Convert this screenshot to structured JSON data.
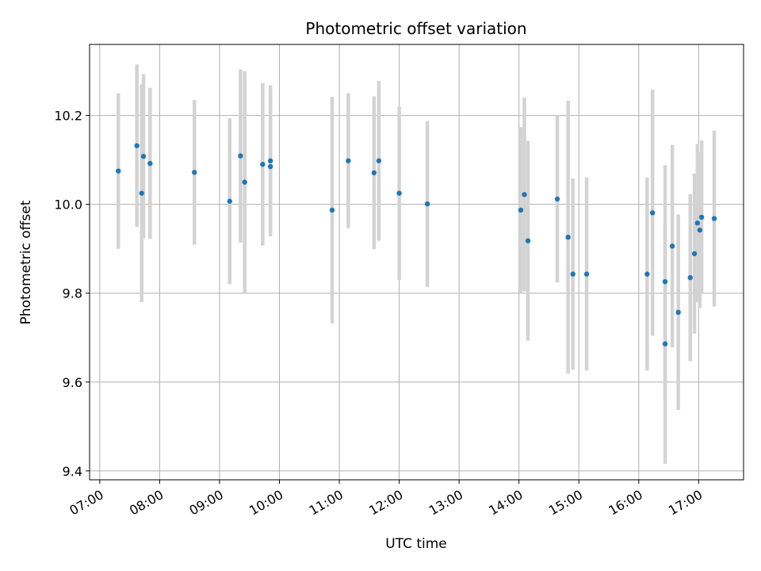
{
  "chart_data": {
    "type": "scatter",
    "title": "Photometric offset variation",
    "xlabel": "UTC time",
    "ylabel": "Photometric offset",
    "x_unit": "hours UTC",
    "xlim": [
      6.83,
      17.75
    ],
    "ylim": [
      9.38,
      10.36
    ],
    "x_ticks": [
      7,
      8,
      9,
      10,
      11,
      12,
      13,
      14,
      15,
      16,
      17
    ],
    "x_tick_labels": [
      "07:00",
      "08:00",
      "09:00",
      "10:00",
      "11:00",
      "12:00",
      "13:00",
      "14:00",
      "15:00",
      "16:00",
      "17:00"
    ],
    "y_ticks": [
      9.4,
      9.6,
      9.8,
      10.0,
      10.2
    ],
    "y_tick_labels": [
      "9.4",
      "9.6",
      "9.8",
      "10.0",
      "10.2"
    ],
    "grid": true,
    "point_color": "#1f77b4",
    "errorbar_color": "#d3d3d3",
    "points": [
      {
        "x": 7.31,
        "y": 10.075,
        "err": 0.175
      },
      {
        "x": 7.62,
        "y": 10.132,
        "err": 0.183
      },
      {
        "x": 7.7,
        "y": 10.025,
        "err": 0.245
      },
      {
        "x": 7.73,
        "y": 10.108,
        "err": 0.185
      },
      {
        "x": 7.84,
        "y": 10.092,
        "err": 0.17
      },
      {
        "x": 8.58,
        "y": 10.072,
        "err": 0.163
      },
      {
        "x": 9.17,
        "y": 10.007,
        "err": 0.187
      },
      {
        "x": 9.35,
        "y": 10.109,
        "err": 0.195
      },
      {
        "x": 9.42,
        "y": 10.05,
        "err": 0.25
      },
      {
        "x": 9.72,
        "y": 10.09,
        "err": 0.183
      },
      {
        "x": 9.85,
        "y": 10.098,
        "err": 0.17
      },
      {
        "x": 9.85,
        "y": 10.085,
        "err": 0.15
      },
      {
        "x": 10.88,
        "y": 9.987,
        "err": 0.255
      },
      {
        "x": 11.15,
        "y": 10.098,
        "err": 0.152
      },
      {
        "x": 11.58,
        "y": 10.071,
        "err": 0.172
      },
      {
        "x": 11.66,
        "y": 10.098,
        "err": 0.18
      },
      {
        "x": 12.0,
        "y": 10.025,
        "err": 0.195
      },
      {
        "x": 12.47,
        "y": 10.001,
        "err": 0.187
      },
      {
        "x": 14.03,
        "y": 9.987,
        "err": 0.187
      },
      {
        "x": 14.09,
        "y": 10.022,
        "err": 0.218
      },
      {
        "x": 14.15,
        "y": 9.918,
        "err": 0.225
      },
      {
        "x": 14.64,
        "y": 10.012,
        "err": 0.188
      },
      {
        "x": 14.82,
        "y": 9.926,
        "err": 0.307
      },
      {
        "x": 14.9,
        "y": 9.843,
        "err": 0.215
      },
      {
        "x": 15.13,
        "y": 9.843,
        "err": 0.217
      },
      {
        "x": 16.14,
        "y": 9.843,
        "err": 0.217
      },
      {
        "x": 16.23,
        "y": 9.981,
        "err": 0.277
      },
      {
        "x": 16.44,
        "y": 9.826,
        "err": 0.262
      },
      {
        "x": 16.44,
        "y": 9.686,
        "err": 0.27
      },
      {
        "x": 16.56,
        "y": 9.906,
        "err": 0.228
      },
      {
        "x": 16.66,
        "y": 9.757,
        "err": 0.22
      },
      {
        "x": 16.86,
        "y": 9.835,
        "err": 0.188
      },
      {
        "x": 16.93,
        "y": 9.889,
        "err": 0.18
      },
      {
        "x": 16.98,
        "y": 9.958,
        "err": 0.178
      },
      {
        "x": 17.02,
        "y": 9.942,
        "err": 0.175
      },
      {
        "x": 17.05,
        "y": 9.971,
        "err": 0.173
      },
      {
        "x": 17.26,
        "y": 9.968,
        "err": 0.198
      }
    ]
  }
}
